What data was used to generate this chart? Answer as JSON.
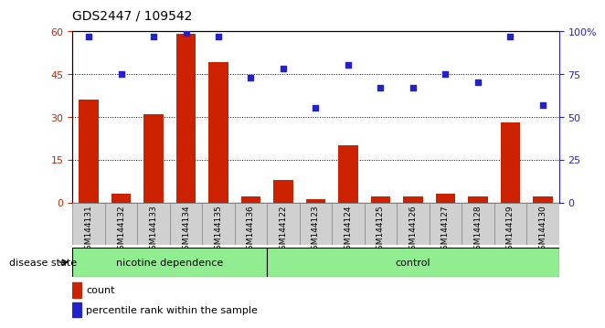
{
  "title": "GDS2447 / 109542",
  "categories": [
    "GSM144131",
    "GSM144132",
    "GSM144133",
    "GSM144134",
    "GSM144135",
    "GSM144136",
    "GSM144122",
    "GSM144123",
    "GSM144124",
    "GSM144125",
    "GSM144126",
    "GSM144127",
    "GSM144128",
    "GSM144129",
    "GSM144130"
  ],
  "counts": [
    36,
    3,
    31,
    59,
    49,
    2,
    8,
    1,
    20,
    2,
    2,
    3,
    2,
    28,
    2
  ],
  "percentiles": [
    97,
    75,
    97,
    99,
    97,
    73,
    78,
    55,
    80,
    67,
    67,
    75,
    70,
    97,
    57
  ],
  "group1_label": "nicotine dependence",
  "group1_count": 6,
  "group2_label": "control",
  "group2_count": 9,
  "bar_color": "#cc2200",
  "dot_color": "#2222cc",
  "group_bg": "#90ee90",
  "ylim_left": [
    0,
    60
  ],
  "ylim_right": [
    0,
    100
  ],
  "yticks_left": [
    0,
    15,
    30,
    45,
    60
  ],
  "yticks_right": [
    0,
    25,
    50,
    75,
    100
  ],
  "grid_lines": [
    15,
    30,
    45
  ],
  "legend_count_label": "count",
  "legend_pct_label": "percentile rank within the sample",
  "disease_state_label": "disease state"
}
